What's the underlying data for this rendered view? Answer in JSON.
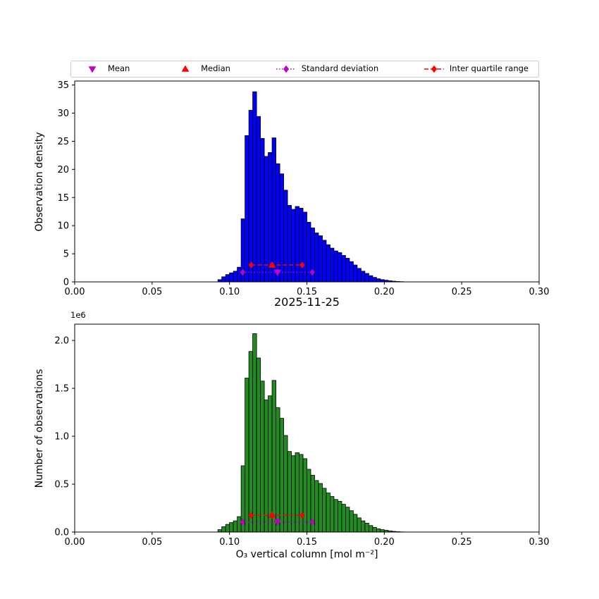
{
  "figure": {
    "background": "#ffffff"
  },
  "legend": {
    "items": [
      {
        "label": "Mean",
        "marker": "triangle-down",
        "color": "#bf00bf",
        "line": "none"
      },
      {
        "label": "Median",
        "marker": "triangle-up",
        "color": "#ff0000",
        "line": "none"
      },
      {
        "label": "Standard deviation",
        "marker": "diamond",
        "color": "#bf00bf",
        "line": "dotted"
      },
      {
        "label": "Inter quartile range",
        "marker": "diamond",
        "color": "#ff0000",
        "line": "dashed"
      }
    ]
  },
  "chart_data": [
    {
      "type": "bar",
      "title": "",
      "ylabel": "Observation density",
      "xlabel": "",
      "xlim": [
        0.0,
        0.3
      ],
      "ylim": [
        0,
        35.7
      ],
      "xticks": [
        "0.00",
        "0.05",
        "0.10",
        "0.15",
        "0.20",
        "0.25",
        "0.30"
      ],
      "yticks": [
        "0",
        "5",
        "10",
        "15",
        "20",
        "25",
        "30",
        "35"
      ],
      "grid": false,
      "legend_position": "top",
      "bar_color": "#0000ff",
      "bar_edge_color": "#000000",
      "bin_start": 0.0925,
      "bin_width": 0.0025,
      "values": [
        0.4,
        0.9,
        1.3,
        1.6,
        1.9,
        2.6,
        11.2,
        26.0,
        30.5,
        33.8,
        29.4,
        25.5,
        22.3,
        23.0,
        25.6,
        21.0,
        19.2,
        16.3,
        13.6,
        12.9,
        13.4,
        13.1,
        12.4,
        10.6,
        9.6,
        8.7,
        8.2,
        7.4,
        6.6,
        6.0,
        5.5,
        5.2,
        4.7,
        4.2,
        3.6,
        3.0,
        2.4,
        1.9,
        1.5,
        1.1,
        0.8,
        0.55,
        0.4,
        0.3,
        0.2,
        0.12,
        0.07,
        0.04
      ],
      "overlays": {
        "std": {
          "x1": 0.1085,
          "x2": 0.1535,
          "center": 0.131,
          "y": 1.7,
          "color": "#bf00bf",
          "marker": "triangle-down",
          "line": "dotted"
        },
        "iqr": {
          "x1": 0.114,
          "x2": 0.147,
          "center": 0.1275,
          "y": 3.0,
          "color": "#ff0000",
          "marker": "triangle-up",
          "line": "dashed"
        }
      }
    },
    {
      "type": "bar",
      "title": "2025-11-25",
      "ylabel": "Number of observations",
      "xlabel": "O₃ vertical column [mol m⁻²]",
      "y_offset_label": "1e6",
      "xlim": [
        0.0,
        0.3
      ],
      "ylim": [
        0,
        2.17
      ],
      "xticks": [
        "0.00",
        "0.05",
        "0.10",
        "0.15",
        "0.20",
        "0.25",
        "0.30"
      ],
      "yticks": [
        "0.0",
        "0.5",
        "1.0",
        "1.5",
        "2.0"
      ],
      "grid": false,
      "bar_color": "#228b22",
      "bar_edge_color": "#000000",
      "bin_start": 0.0925,
      "bin_width": 0.0025,
      "values": [
        0.025,
        0.056,
        0.08,
        0.099,
        0.117,
        0.161,
        0.692,
        1.607,
        1.885,
        2.071,
        1.817,
        1.576,
        1.379,
        1.422,
        1.583,
        1.298,
        1.187,
        1.008,
        0.841,
        0.797,
        0.828,
        0.81,
        0.766,
        0.655,
        0.593,
        0.538,
        0.507,
        0.457,
        0.408,
        0.371,
        0.34,
        0.321,
        0.29,
        0.26,
        0.223,
        0.185,
        0.148,
        0.117,
        0.093,
        0.068,
        0.049,
        0.034,
        0.025,
        0.019,
        0.012,
        0.007,
        0.004,
        0.002
      ],
      "overlays": {
        "std": {
          "x1": 0.1085,
          "x2": 0.1535,
          "center": 0.131,
          "y": 0.105,
          "color": "#bf00bf",
          "marker": "triangle-down",
          "line": "dotted"
        },
        "iqr": {
          "x1": 0.114,
          "x2": 0.147,
          "center": 0.1275,
          "y": 0.175,
          "color": "#ff0000",
          "marker": "triangle-up",
          "line": "dashed"
        }
      }
    }
  ]
}
